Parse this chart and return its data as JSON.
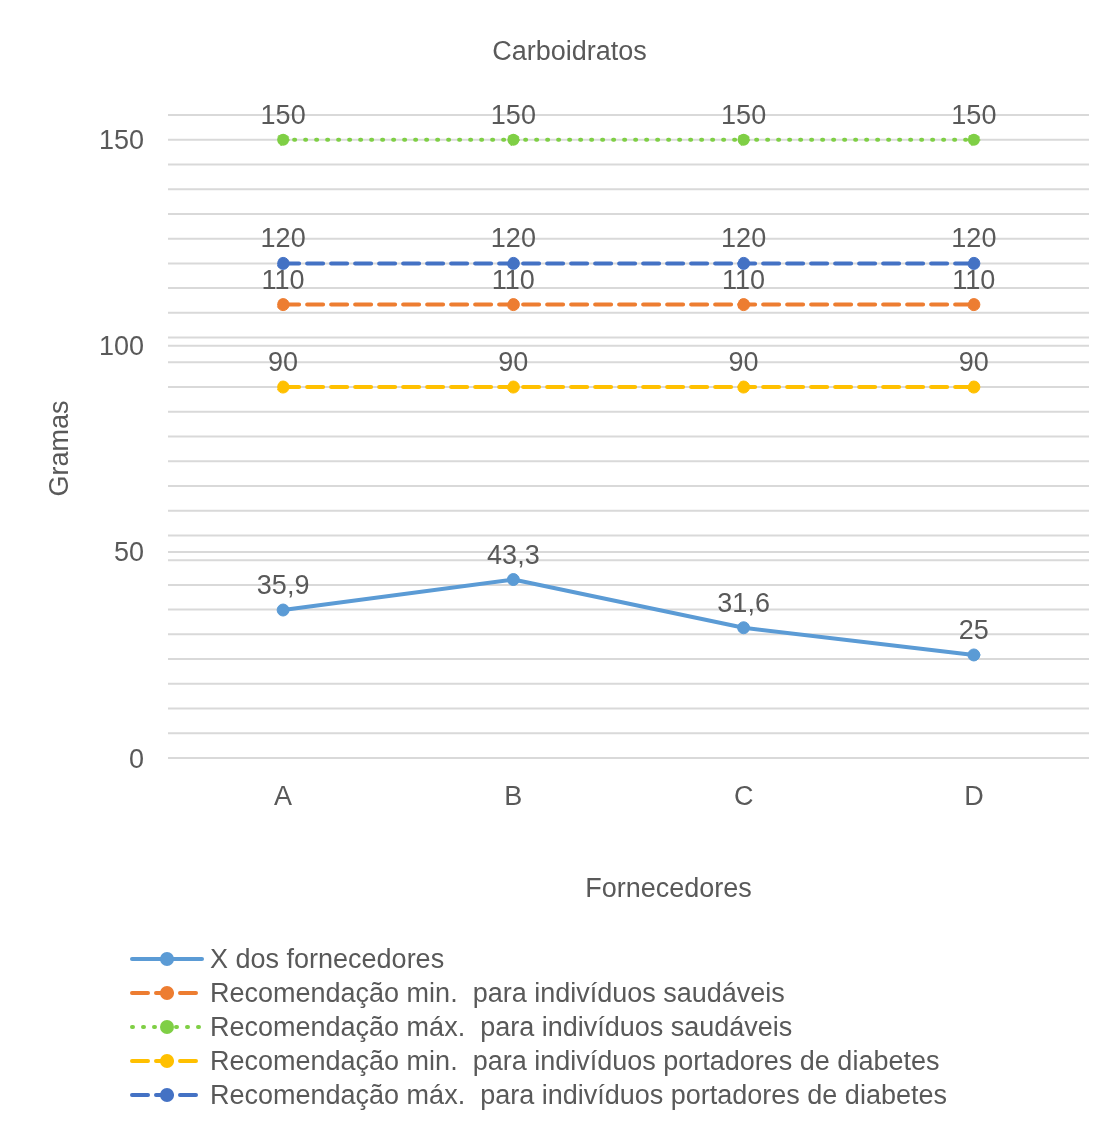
{
  "chart_data": {
    "type": "line",
    "title": "Carboidratos",
    "xlabel": "Fornecedores",
    "ylabel": "Gramas",
    "categories": [
      "A",
      "B",
      "C",
      "D"
    ],
    "series": [
      {
        "name": "X dos fornecedores",
        "color": "#5b9bd5",
        "values": [
          35.9,
          43.3,
          31.6,
          25
        ],
        "value_labels": [
          "35,9",
          "43,3",
          "31,6",
          "25"
        ],
        "line_style": "solid"
      },
      {
        "name": "Recomendação min.  para indivíduos saudáveis",
        "color": "#ed7d31",
        "values": [
          110,
          110,
          110,
          110
        ],
        "value_labels": [
          "110",
          "110",
          "110",
          "110"
        ],
        "line_style": "dashed"
      },
      {
        "name": "Recomendação máx.  para indivíduos saudáveis",
        "color": "#7fcf45",
        "values": [
          150,
          150,
          150,
          150
        ],
        "value_labels": [
          "150",
          "150",
          "150",
          "150"
        ],
        "line_style": "dotted"
      },
      {
        "name": "Recomendação min.  para indivíduos portadores de diabetes",
        "color": "#ffc000",
        "values": [
          90,
          90,
          90,
          90
        ],
        "value_labels": [
          "90",
          "90",
          "90",
          "90"
        ],
        "line_style": "dashed"
      },
      {
        "name": "Recomendação máx.  para indivíduos portadores de diabetes",
        "color": "#4472c4",
        "values": [
          120,
          120,
          120,
          120
        ],
        "value_labels": [
          "120",
          "120",
          "120",
          "120"
        ],
        "line_style": "dashed"
      }
    ],
    "ylim": [
      0,
      156
    ],
    "yticks": [
      0,
      {
        "value": 6,
        "label": null
      },
      {
        "value": 12,
        "label": null
      },
      {
        "value": 18,
        "label": null
      },
      {
        "value": 24,
        "label": null
      },
      {
        "value": 30,
        "label": null
      },
      {
        "value": 36,
        "label": null
      },
      {
        "value": 42,
        "label": null
      },
      {
        "value": 48,
        "label": null
      },
      50,
      {
        "value": 54,
        "label": null
      },
      {
        "value": 60,
        "label": null
      },
      {
        "value": 66,
        "label": null
      },
      {
        "value": 72,
        "label": null
      },
      {
        "value": 78,
        "label": null
      },
      {
        "value": 84,
        "label": null
      },
      {
        "value": 90,
        "label": null
      },
      {
        "value": 96,
        "label": null
      },
      100,
      {
        "value": 102,
        "label": null
      },
      {
        "value": 108,
        "label": null
      },
      {
        "value": 114,
        "label": null
      },
      {
        "value": 120,
        "label": null
      },
      {
        "value": 126,
        "label": null
      },
      {
        "value": 132,
        "label": null
      },
      {
        "value": 138,
        "label": null
      },
      {
        "value": 144,
        "label": null
      },
      150,
      {
        "value": 156,
        "label": null
      }
    ],
    "grid": "y",
    "legend": "bottom",
    "marker": "circle"
  }
}
